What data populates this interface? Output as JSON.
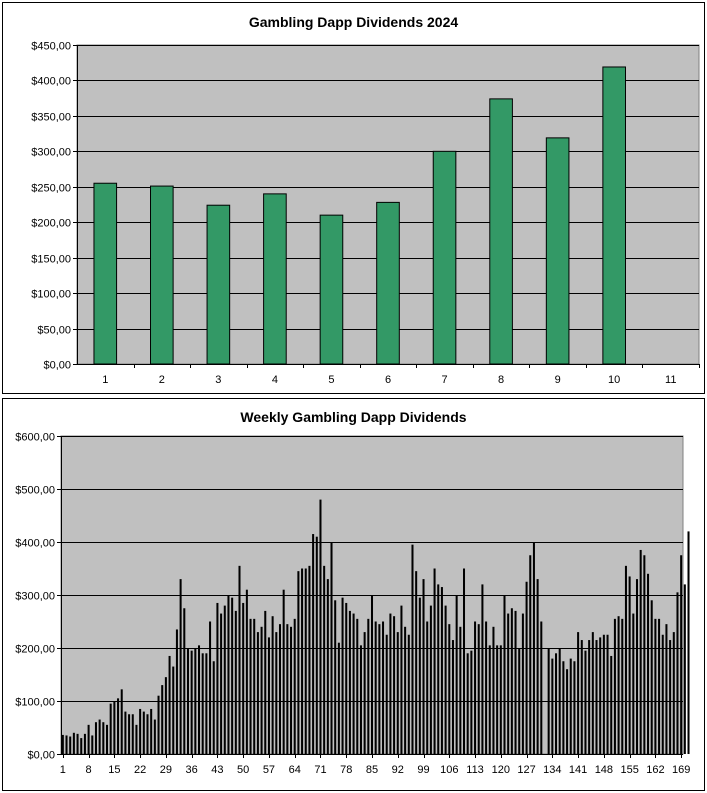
{
  "colors": {
    "plot_background": "#c0c0c0",
    "bar_fill_chart1": "#339966",
    "bar_fill_chart2": "#000000",
    "gridline": "#000000"
  },
  "chart_data": [
    {
      "type": "bar",
      "title": "Gambling Dapp Dividends 2024",
      "xlabel": "",
      "ylabel": "",
      "categories": [
        "1",
        "2",
        "3",
        "4",
        "5",
        "6",
        "7",
        "8",
        "9",
        "10",
        "11"
      ],
      "values": [
        255,
        251,
        224,
        240,
        210,
        228,
        300,
        374,
        319,
        419,
        null
      ],
      "ylim": [
        0,
        450
      ],
      "yticks": [
        0,
        50,
        100,
        150,
        200,
        250,
        300,
        350,
        400,
        450
      ],
      "ytick_labels": [
        "$0,00",
        "$50,00",
        "$100,00",
        "$150,00",
        "$200,00",
        "$250,00",
        "$300,00",
        "$350,00",
        "$400,00",
        "$450,00"
      ],
      "grid": true,
      "legend": "none"
    },
    {
      "type": "bar",
      "title": "Weekly Gambling Dapp Dividends",
      "xlabel": "",
      "ylabel": "",
      "x_range": [
        1,
        169
      ],
      "xtick_labels": [
        "1",
        "8",
        "15",
        "22",
        "29",
        "36",
        "43",
        "50",
        "57",
        "64",
        "71",
        "78",
        "85",
        "92",
        "99",
        "106",
        "113",
        "120",
        "127",
        "134",
        "141",
        "148",
        "155",
        "162",
        "169"
      ],
      "values": [
        36,
        35,
        33,
        40,
        38,
        30,
        38,
        55,
        35,
        60,
        65,
        60,
        55,
        95,
        100,
        105,
        122,
        80,
        75,
        75,
        55,
        85,
        80,
        75,
        85,
        65,
        110,
        130,
        145,
        185,
        165,
        235,
        330,
        275,
        200,
        195,
        200,
        205,
        190,
        190,
        250,
        175,
        285,
        265,
        280,
        300,
        295,
        270,
        355,
        285,
        310,
        255,
        255,
        230,
        240,
        270,
        220,
        260,
        230,
        245,
        310,
        245,
        240,
        255,
        345,
        350,
        350,
        355,
        415,
        410,
        480,
        355,
        330,
        400,
        290,
        210,
        295,
        285,
        270,
        265,
        255,
        205,
        230,
        255,
        300,
        250,
        245,
        250,
        225,
        265,
        260,
        230,
        280,
        240,
        225,
        395,
        345,
        295,
        330,
        250,
        280,
        350,
        320,
        315,
        280,
        245,
        215,
        300,
        240,
        350,
        190,
        195,
        250,
        245,
        320,
        250,
        205,
        240,
        205,
        205,
        300,
        265,
        275,
        270,
        200,
        265,
        325,
        375,
        400,
        330,
        250,
        0,
        200,
        180,
        190,
        200,
        175,
        160,
        180,
        175,
        230,
        215,
        195,
        215,
        230,
        215,
        220,
        225,
        225,
        185,
        255,
        260,
        255,
        355,
        335,
        265,
        330,
        385,
        375,
        340,
        290,
        255,
        255,
        225,
        245,
        215,
        230,
        305,
        375,
        320,
        420
      ],
      "ylim": [
        0,
        600
      ],
      "yticks": [
        0,
        100,
        200,
        300,
        400,
        500,
        600
      ],
      "ytick_labels": [
        "$0,00",
        "$100,00",
        "$200,00",
        "$300,00",
        "$400,00",
        "$500,00",
        "$600,00"
      ],
      "grid": true,
      "legend": "none"
    }
  ]
}
